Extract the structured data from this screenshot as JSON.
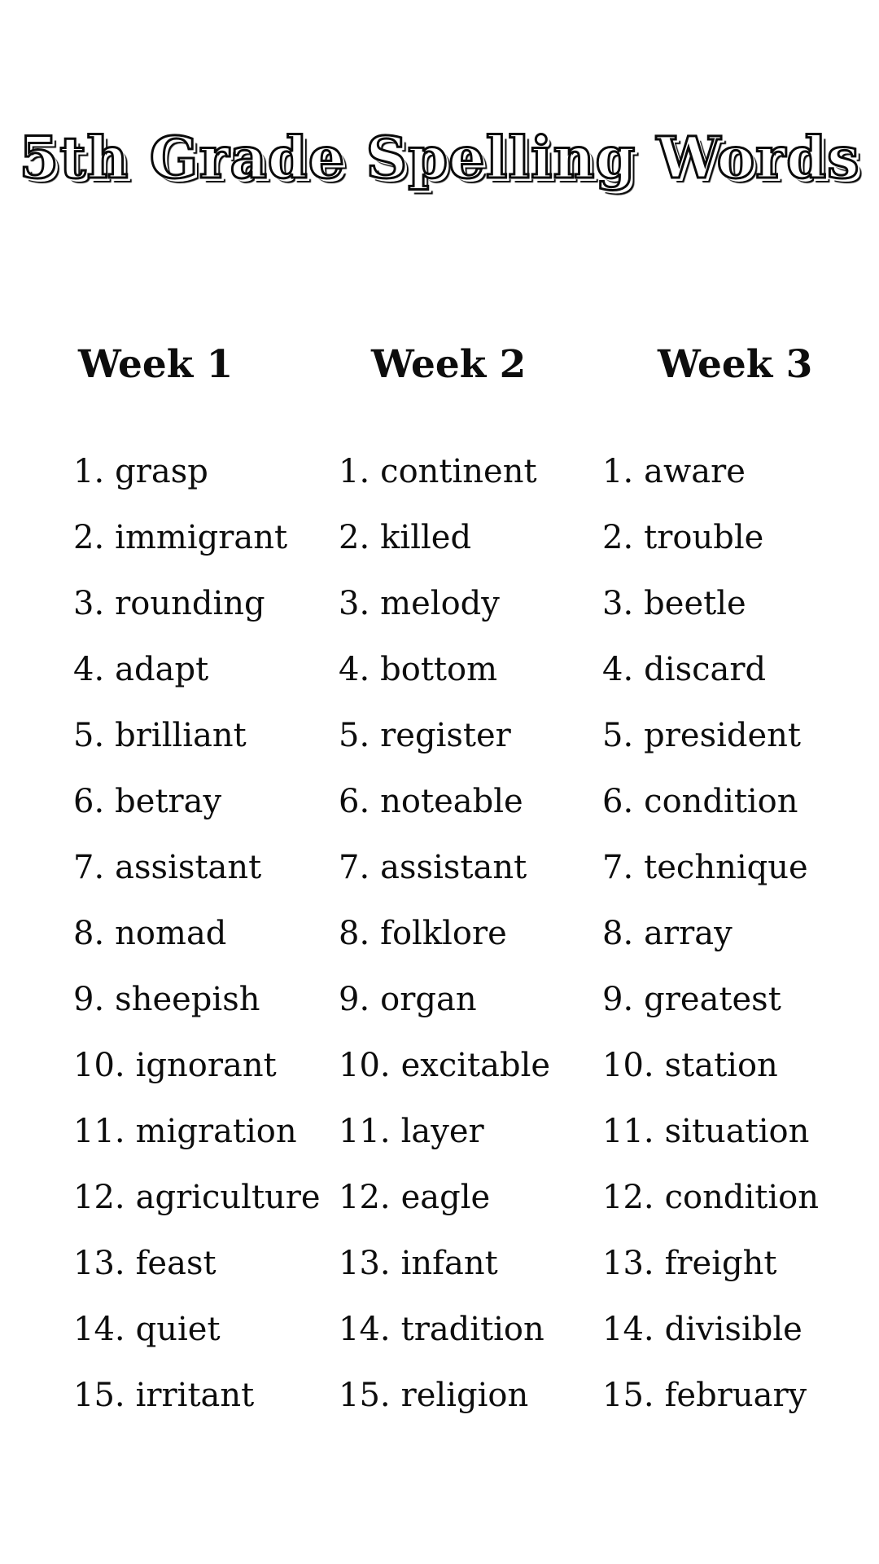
{
  "title": "5th Grade Spelling Words",
  "colors": {
    "background": "#ffffff",
    "text": "#0d0d0d",
    "title_fill": "#ffffff",
    "title_outline": "#0a0a0a"
  },
  "columns": [
    {
      "header": "Week 1",
      "items": [
        {
          "num": "1.",
          "word": "grasp"
        },
        {
          "num": "2.",
          "word": "immigrant"
        },
        {
          "num": "3.",
          "word": "rounding"
        },
        {
          "num": "4.",
          "word": "adapt"
        },
        {
          "num": "5.",
          "word": "brilliant"
        },
        {
          "num": "6.",
          "word": "betray"
        },
        {
          "num": "7.",
          "word": "assistant"
        },
        {
          "num": "8.",
          "word": "nomad"
        },
        {
          "num": "9.",
          "word": "sheepish"
        },
        {
          "num": "10.",
          "word": "ignorant"
        },
        {
          "num": "11.",
          "word": "migration"
        },
        {
          "num": "12.",
          "word": "agriculture"
        },
        {
          "num": "13.",
          "word": "feast"
        },
        {
          "num": "14.",
          "word": "quiet"
        },
        {
          "num": "15.",
          "word": "irritant"
        }
      ]
    },
    {
      "header": "Week 2",
      "items": [
        {
          "num": "1.",
          "word": "continent"
        },
        {
          "num": "2.",
          "word": "killed"
        },
        {
          "num": "3.",
          "word": "melody"
        },
        {
          "num": "4.",
          "word": "bottom"
        },
        {
          "num": "5.",
          "word": "register"
        },
        {
          "num": "6.",
          "word": "noteable"
        },
        {
          "num": "7.",
          "word": "assistant"
        },
        {
          "num": "8.",
          "word": "folklore"
        },
        {
          "num": "9.",
          "word": "organ"
        },
        {
          "num": "10.",
          "word": "excitable"
        },
        {
          "num": "11.",
          "word": "layer"
        },
        {
          "num": "12.",
          "word": "eagle"
        },
        {
          "num": "13.",
          "word": "infant"
        },
        {
          "num": "14.",
          "word": "tradition"
        },
        {
          "num": "15.",
          "word": "religion"
        }
      ]
    },
    {
      "header": "Week 3",
      "items": [
        {
          "num": "1.",
          "word": "aware"
        },
        {
          "num": "2.",
          "word": "trouble"
        },
        {
          "num": "3.",
          "word": "beetle"
        },
        {
          "num": "4.",
          "word": "discard"
        },
        {
          "num": "5.",
          "word": "president"
        },
        {
          "num": "6.",
          "word": "condition"
        },
        {
          "num": "7.",
          "word": "technique"
        },
        {
          "num": "8.",
          "word": "array"
        },
        {
          "num": "9.",
          "word": "greatest"
        },
        {
          "num": "10.",
          "word": "station"
        },
        {
          "num": "11.",
          "word": "situation"
        },
        {
          "num": "12.",
          "word": "condition"
        },
        {
          "num": "13.",
          "word": "freight"
        },
        {
          "num": "14.",
          "word": "divisible"
        },
        {
          "num": "15.",
          "word": "february"
        }
      ]
    }
  ]
}
